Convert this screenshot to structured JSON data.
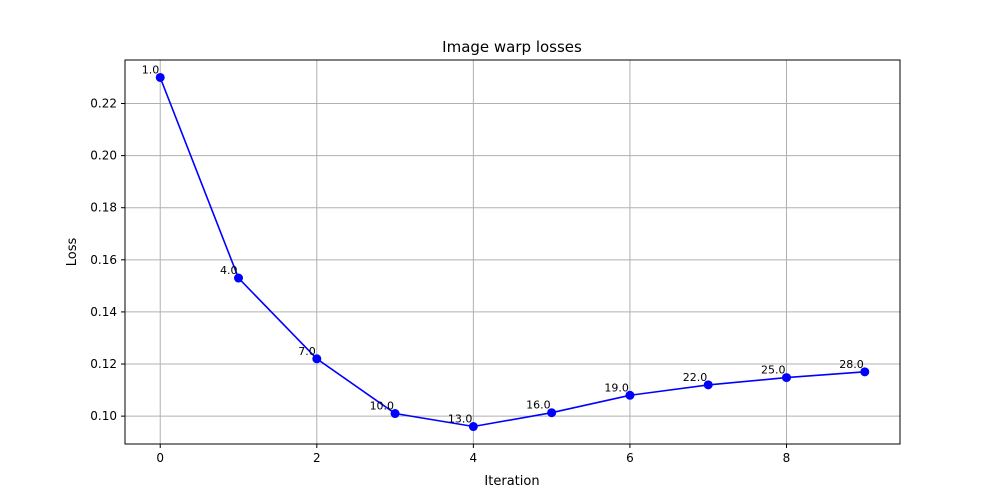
{
  "chart_data": {
    "type": "line",
    "title": "Image warp losses",
    "xlabel": "Iteration",
    "ylabel": "Loss",
    "xlim": [
      -0.45,
      9.45
    ],
    "ylim": [
      0.0893,
      0.2367
    ],
    "xticks": [
      0,
      2,
      4,
      6,
      8
    ],
    "yticks": [
      0.1,
      0.12,
      0.14,
      0.16,
      0.18,
      0.2,
      0.22
    ],
    "grid": true,
    "series": [
      {
        "color": "#0000ff",
        "marker": "circle",
        "x": [
          0,
          1,
          2,
          3,
          4,
          5,
          6,
          7,
          8,
          9
        ],
        "y": [
          0.23,
          0.153,
          0.122,
          0.101,
          0.096,
          0.1013,
          0.108,
          0.112,
          0.1148,
          0.117
        ],
        "point_labels": [
          "1.0",
          "4.0",
          "7.0",
          "10.0",
          "13.0",
          "16.0",
          "19.0",
          "22.0",
          "25.0",
          "28.0"
        ]
      }
    ]
  }
}
